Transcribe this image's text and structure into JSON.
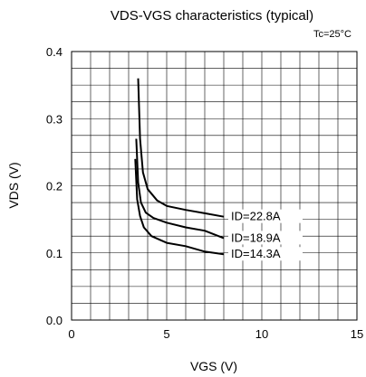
{
  "chart_data": {
    "type": "line",
    "title": "VDS-VGS characteristics (typical)",
    "subtitle": "Tc=25°C",
    "xlabel": "VGS (V)",
    "ylabel": "VDS (V)",
    "xlim": [
      0,
      15
    ],
    "ylim": [
      0,
      0.4
    ],
    "xticks": [
      "0",
      "5",
      "10",
      "15"
    ],
    "yticks": [
      "0.0",
      "0.1",
      "0.2",
      "0.3",
      "0.4"
    ],
    "grid": true,
    "series": [
      {
        "name": "ID=22.8A",
        "x": [
          3.5,
          3.6,
          3.75,
          4.0,
          4.5,
          5.0,
          6.0,
          7.0,
          8.0
        ],
        "y": [
          0.36,
          0.27,
          0.22,
          0.195,
          0.178,
          0.17,
          0.164,
          0.159,
          0.154
        ]
      },
      {
        "name": "ID=18.9A",
        "x": [
          3.4,
          3.5,
          3.65,
          3.9,
          4.3,
          5.0,
          6.0,
          7.0,
          8.0
        ],
        "y": [
          0.27,
          0.205,
          0.175,
          0.16,
          0.152,
          0.145,
          0.138,
          0.133,
          0.122
        ]
      },
      {
        "name": "ID=14.3A",
        "x": [
          3.35,
          3.45,
          3.6,
          3.8,
          4.2,
          5.0,
          6.0,
          7.0,
          8.0
        ],
        "y": [
          0.24,
          0.18,
          0.155,
          0.138,
          0.125,
          0.115,
          0.11,
          0.102,
          0.098
        ]
      }
    ]
  }
}
